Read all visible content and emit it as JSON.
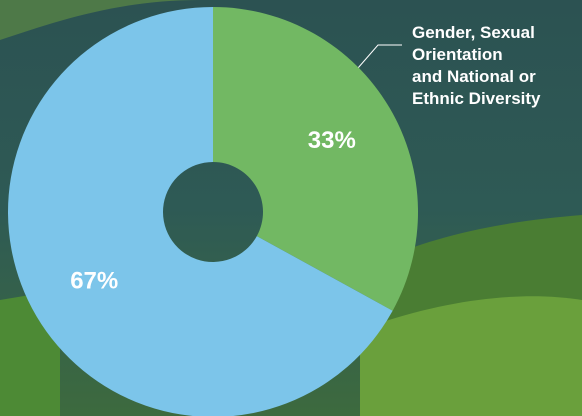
{
  "chart_data": {
    "type": "pie",
    "categories": [
      "Gender, Sexual\nOrientation\nand National or\nEthnic Diversity",
      null
    ],
    "values": [
      33,
      67
    ],
    "value_labels": [
      "33%",
      "67%"
    ],
    "colors": [
      "#72b863",
      "#7cc5ea"
    ]
  }
}
